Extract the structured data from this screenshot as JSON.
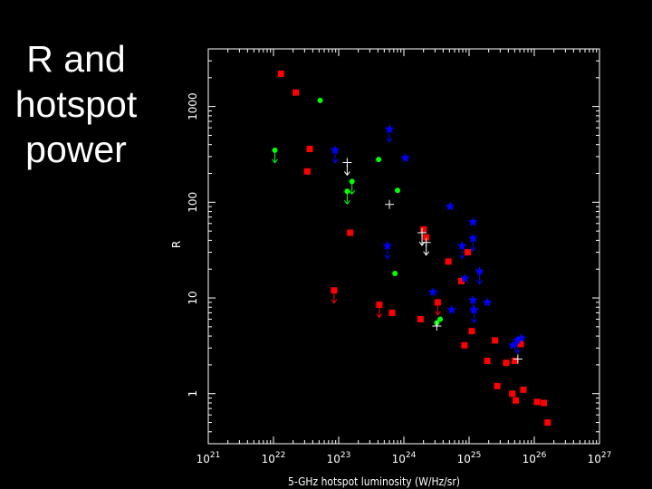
{
  "slide": {
    "title": "R and\nhotspot\npower"
  },
  "chart_data": {
    "type": "scatter",
    "xlabel": "5-GHz hotspot luminosity (W/Hz/sr)",
    "ylabel": "R",
    "xscale": "log",
    "yscale": "log",
    "xlim": [
      1e+21,
      1e+27
    ],
    "ylim": [
      0.3,
      4000
    ],
    "x_ticks": [
      {
        "value": 1e+21,
        "base": "10",
        "exp": "21"
      },
      {
        "value": 1e+22,
        "base": "10",
        "exp": "22"
      },
      {
        "value": 1e+23,
        "base": "10",
        "exp": "23"
      },
      {
        "value": 1e+24,
        "base": "10",
        "exp": "24"
      },
      {
        "value": 1e+25,
        "base": "10",
        "exp": "25"
      },
      {
        "value": 1e+26,
        "base": "10",
        "exp": "26"
      },
      {
        "value": 1e+27,
        "base": "10",
        "exp": "27"
      }
    ],
    "y_ticks": [
      {
        "value": 1,
        "label": "1"
      },
      {
        "value": 10,
        "label": "10"
      },
      {
        "value": 100,
        "label": "100"
      },
      {
        "value": 1000,
        "label": "1000"
      }
    ],
    "grid": false,
    "series": [
      {
        "color": "#ff0000",
        "marker": "square",
        "points": [
          {
            "x": 1.3e+22,
            "y": 2200
          },
          {
            "x": 2.2e+22,
            "y": 1400
          },
          {
            "x": 3.6e+22,
            "y": 360
          },
          {
            "x": 3.3e+22,
            "y": 210
          },
          {
            "x": 1.5e+23,
            "y": 48
          },
          {
            "x": 8.5e+22,
            "y": 12,
            "limit": "upper"
          },
          {
            "x": 4.2e+23,
            "y": 8.5,
            "limit": "upper"
          },
          {
            "x": 6.6e+23,
            "y": 7.0
          },
          {
            "x": 2e+24,
            "y": 52
          },
          {
            "x": 2.2e+24,
            "y": 43
          },
          {
            "x": 1.8e+24,
            "y": 6.0
          },
          {
            "x": 3.3e+24,
            "y": 9.0,
            "limit": "upper"
          },
          {
            "x": 4.8e+24,
            "y": 24
          },
          {
            "x": 9.5e+24,
            "y": 30
          },
          {
            "x": 7.6e+24,
            "y": 15
          },
          {
            "x": 2.5e+25,
            "y": 3.6
          },
          {
            "x": 6.2e+25,
            "y": 3.3
          },
          {
            "x": 8.5e+24,
            "y": 3.2
          },
          {
            "x": 1.1e+25,
            "y": 4.5
          },
          {
            "x": 1.9e+25,
            "y": 2.2
          },
          {
            "x": 2.7e+25,
            "y": 1.2
          },
          {
            "x": 3.7e+25,
            "y": 2.1
          },
          {
            "x": 5e+25,
            "y": 2.2
          },
          {
            "x": 4.6e+25,
            "y": 1.0
          },
          {
            "x": 6.8e+25,
            "y": 1.1
          },
          {
            "x": 5.2e+25,
            "y": 0.85
          },
          {
            "x": 1.1e+26,
            "y": 0.82
          },
          {
            "x": 1.4e+26,
            "y": 0.8
          },
          {
            "x": 1.6e+26,
            "y": 0.5
          }
        ]
      },
      {
        "color": "#00ff00",
        "marker": "circle",
        "points": [
          {
            "x": 5.2e+22,
            "y": 1160
          },
          {
            "x": 1.05e+22,
            "y": 350,
            "limit": "upper"
          },
          {
            "x": 4.1e+23,
            "y": 280
          },
          {
            "x": 1.6e+23,
            "y": 165,
            "limit": "upper"
          },
          {
            "x": 1.35e+23,
            "y": 130,
            "limit": "upper"
          },
          {
            "x": 8e+23,
            "y": 133
          },
          {
            "x": 7.3e+23,
            "y": 18
          },
          {
            "x": 3.6e+24,
            "y": 6.0
          },
          {
            "x": 3.2e+24,
            "y": 5.5
          }
        ]
      },
      {
        "color": "#0000ff",
        "marker": "star",
        "points": [
          {
            "x": 6e+23,
            "y": 580,
            "limit": "upper"
          },
          {
            "x": 8.8e+22,
            "y": 350,
            "limit": "upper"
          },
          {
            "x": 1.05e+24,
            "y": 290
          },
          {
            "x": 5.1e+24,
            "y": 90
          },
          {
            "x": 1.15e+25,
            "y": 62
          },
          {
            "x": 1.15e+25,
            "y": 42,
            "limit": "upper"
          },
          {
            "x": 7.8e+24,
            "y": 35,
            "limit": "upper"
          },
          {
            "x": 5.6e+23,
            "y": 35,
            "limit": "upper"
          },
          {
            "x": 1.45e+25,
            "y": 19,
            "limit": "upper"
          },
          {
            "x": 8.6e+24,
            "y": 16
          },
          {
            "x": 2.8e+24,
            "y": 11.5
          },
          {
            "x": 1.15e+25,
            "y": 9.5,
            "limit": "upper"
          },
          {
            "x": 1.9e+25,
            "y": 9.0
          },
          {
            "x": 5.4e+24,
            "y": 7.5
          },
          {
            "x": 1.2e+25,
            "y": 7.5,
            "limit": "upper"
          },
          {
            "x": 6.3e+25,
            "y": 3.8
          },
          {
            "x": 5.5e+25,
            "y": 3.6,
            "limit": "upper"
          },
          {
            "x": 4.7e+25,
            "y": 3.2
          }
        ]
      },
      {
        "color": "#ffffff",
        "marker": "plus",
        "points": [
          {
            "x": 1.35e+23,
            "y": 260,
            "limit": "upper"
          },
          {
            "x": 6e+23,
            "y": 95
          },
          {
            "x": 1.9e+24,
            "y": 48,
            "limit": "upper"
          },
          {
            "x": 2.2e+24,
            "y": 38,
            "limit": "upper"
          },
          {
            "x": 3.2e+24,
            "y": 5.1
          },
          {
            "x": 5.6e+25,
            "y": 2.3
          }
        ]
      }
    ]
  }
}
